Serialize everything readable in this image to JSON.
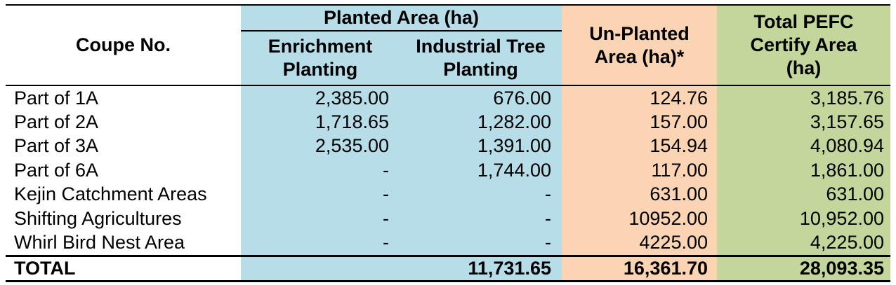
{
  "header": {
    "coupe": "Coupe No.",
    "planted_group": "Planted Area (ha)",
    "enrichment": [
      "Enrichment",
      "Planting"
    ],
    "industrial": [
      "Industrial Tree",
      "Planting"
    ],
    "unplanted": [
      "Un-Planted",
      "Area (ha)*"
    ],
    "total_pefc": [
      "Total PEFC",
      "Certify Area",
      "(ha)"
    ]
  },
  "rows": [
    {
      "name": "Part of 1A",
      "enrichment": "2,385.00",
      "industrial": "676.00",
      "unplanted": "124.76",
      "total": "3,185.76"
    },
    {
      "name": "Part of 2A",
      "enrichment": "1,718.65",
      "industrial": "1,282.00",
      "unplanted": "157.00",
      "total": "3,157.65"
    },
    {
      "name": "Part of 3A",
      "enrichment": "2,535.00",
      "industrial": "1,391.00",
      "unplanted": "154.94",
      "total": "4,080.94"
    },
    {
      "name": "Part of 6A",
      "enrichment": "-",
      "industrial": "1,744.00",
      "unplanted": "117.00",
      "total": "1,861.00"
    },
    {
      "name": "Kejin Catchment Areas",
      "enrichment": "-",
      "industrial": "-",
      "unplanted": "631.00",
      "total": "631.00"
    },
    {
      "name": "Shifting Agricultures",
      "enrichment": "-",
      "industrial": "-",
      "unplanted": "10952.00",
      "total": "10,952.00"
    },
    {
      "name": "Whirl Bird Nest Area",
      "enrichment": "-",
      "industrial": "-",
      "unplanted": "4225.00",
      "total": "4,225.00"
    }
  ],
  "total_row": {
    "label": "TOTAL",
    "enrichment": "",
    "industrial": "11,731.65",
    "unplanted": "16,361.70",
    "total": "28,093.35"
  }
}
